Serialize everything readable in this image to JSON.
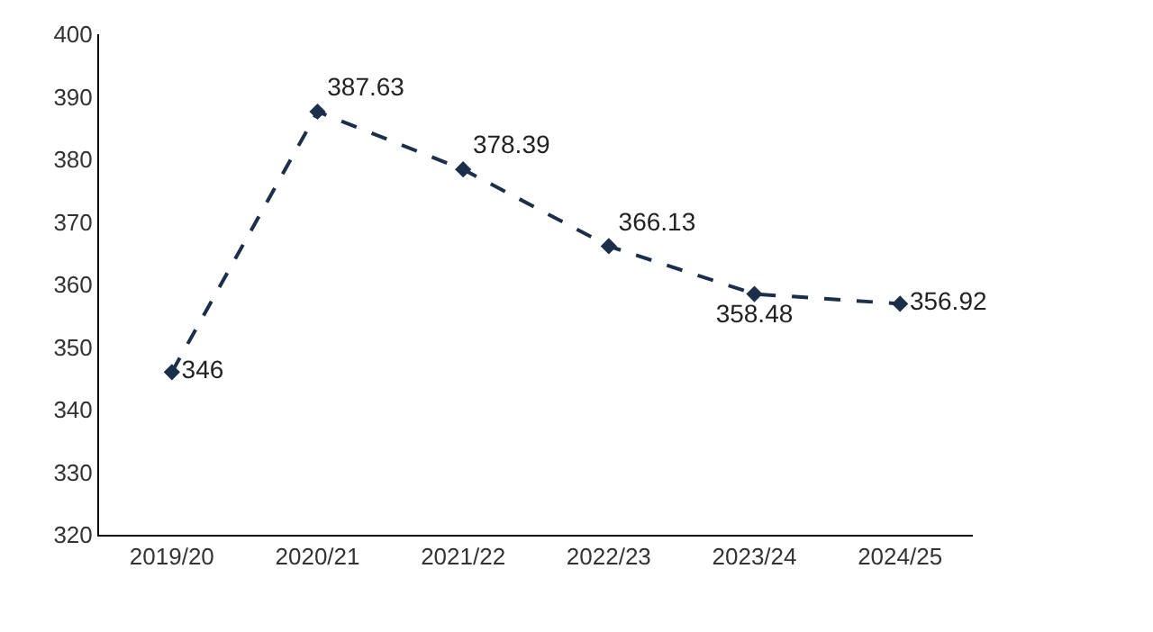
{
  "chart_data": {
    "type": "line",
    "categories": [
      "2019/20",
      "2020/21",
      "2021/22",
      "2022/23",
      "2023/24",
      "2024/25"
    ],
    "series": [
      {
        "color": "#1b2f4b",
        "values": [
          346,
          387.63,
          378.39,
          366.13,
          358.48,
          356.92
        ]
      }
    ],
    "ylim": [
      320,
      400
    ],
    "yticks": [
      320,
      330,
      340,
      350,
      360,
      370,
      380,
      390,
      400
    ],
    "data_labels": true,
    "marker": "diamond",
    "line_style": "dashed",
    "grid": false
  }
}
